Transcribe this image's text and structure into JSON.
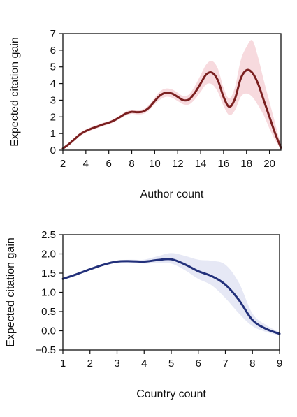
{
  "chart_data": [
    {
      "type": "line",
      "xlabel": "Author count",
      "ylabel": "Expected citation gain",
      "xlim": [
        2,
        21
      ],
      "ylim": [
        0,
        7
      ],
      "xticks": [
        2,
        4,
        6,
        8,
        10,
        12,
        14,
        16,
        18,
        20
      ],
      "yticks": [
        0,
        1,
        2,
        3,
        4,
        5,
        6,
        7
      ],
      "line_color": "#7a1f1f",
      "band_color": "#f6d3d8",
      "series": [
        {
          "x": [
            2,
            2.5,
            3,
            3.5,
            4,
            4.5,
            5,
            5.5,
            6,
            6.5,
            7,
            7.5,
            8,
            8.5,
            9,
            9.5,
            10,
            10.5,
            11,
            11.5,
            12,
            12.5,
            13,
            13.5,
            14,
            14.5,
            15,
            15.5,
            16,
            16.5,
            17,
            17.5,
            18,
            18.5,
            19,
            19.5,
            20,
            20.5,
            21
          ],
          "y": [
            0.1,
            0.35,
            0.65,
            0.95,
            1.15,
            1.3,
            1.42,
            1.55,
            1.65,
            1.8,
            2.0,
            2.2,
            2.3,
            2.28,
            2.32,
            2.55,
            2.95,
            3.3,
            3.45,
            3.4,
            3.2,
            3.0,
            3.05,
            3.45,
            4.0,
            4.55,
            4.65,
            4.2,
            3.2,
            2.6,
            3.1,
            4.3,
            4.8,
            4.65,
            4.0,
            3.0,
            2.0,
            1.0,
            0.15
          ],
          "lower": [
            0.05,
            0.28,
            0.55,
            0.85,
            1.05,
            1.2,
            1.32,
            1.45,
            1.55,
            1.7,
            1.9,
            2.08,
            2.18,
            2.15,
            2.18,
            2.38,
            2.75,
            3.05,
            3.2,
            3.15,
            2.95,
            2.75,
            2.75,
            3.05,
            3.5,
            3.95,
            3.95,
            3.5,
            2.65,
            2.1,
            2.4,
            3.2,
            3.4,
            3.2,
            2.7,
            2.1,
            1.3,
            0.6,
            0.05
          ],
          "upper": [
            0.15,
            0.42,
            0.75,
            1.05,
            1.25,
            1.4,
            1.52,
            1.65,
            1.75,
            1.9,
            2.1,
            2.32,
            2.42,
            2.41,
            2.46,
            2.72,
            3.15,
            3.55,
            3.7,
            3.65,
            3.45,
            3.25,
            3.35,
            3.85,
            4.5,
            5.15,
            5.35,
            4.9,
            3.75,
            3.1,
            3.8,
            5.4,
            6.2,
            6.6,
            5.6,
            4.2,
            2.9,
            1.6,
            0.3
          ]
        }
      ]
    },
    {
      "type": "line",
      "xlabel": "Country count",
      "ylabel": "Expected citation gain",
      "xlim": [
        1,
        9
      ],
      "ylim": [
        -0.5,
        2.5
      ],
      "xticks": [
        1,
        2,
        3,
        4,
        5,
        6,
        7,
        8,
        9
      ],
      "yticks": [
        "−0.5",
        "0.0",
        "0.5",
        "1.0",
        "1.5",
        "2.0",
        "2.5"
      ],
      "line_color": "#22307a",
      "band_color": "#e2e4f3",
      "series": [
        {
          "x": [
            1,
            1.5,
            2,
            2.5,
            3,
            3.5,
            4,
            4.5,
            5,
            5.5,
            6,
            6.5,
            7,
            7.5,
            8,
            8.5,
            9
          ],
          "y": [
            1.35,
            1.47,
            1.6,
            1.72,
            1.8,
            1.81,
            1.8,
            1.84,
            1.86,
            1.73,
            1.55,
            1.42,
            1.2,
            0.8,
            0.28,
            0.05,
            -0.08
          ],
          "lower": [
            1.33,
            1.45,
            1.58,
            1.7,
            1.77,
            1.77,
            1.75,
            1.76,
            1.75,
            1.58,
            1.35,
            1.18,
            0.85,
            0.45,
            0.12,
            -0.03,
            -0.12
          ],
          "upper": [
            1.37,
            1.49,
            1.62,
            1.74,
            1.83,
            1.85,
            1.85,
            1.94,
            2.02,
            1.95,
            1.85,
            1.82,
            1.72,
            1.25,
            0.45,
            0.15,
            -0.04
          ]
        }
      ]
    }
  ]
}
